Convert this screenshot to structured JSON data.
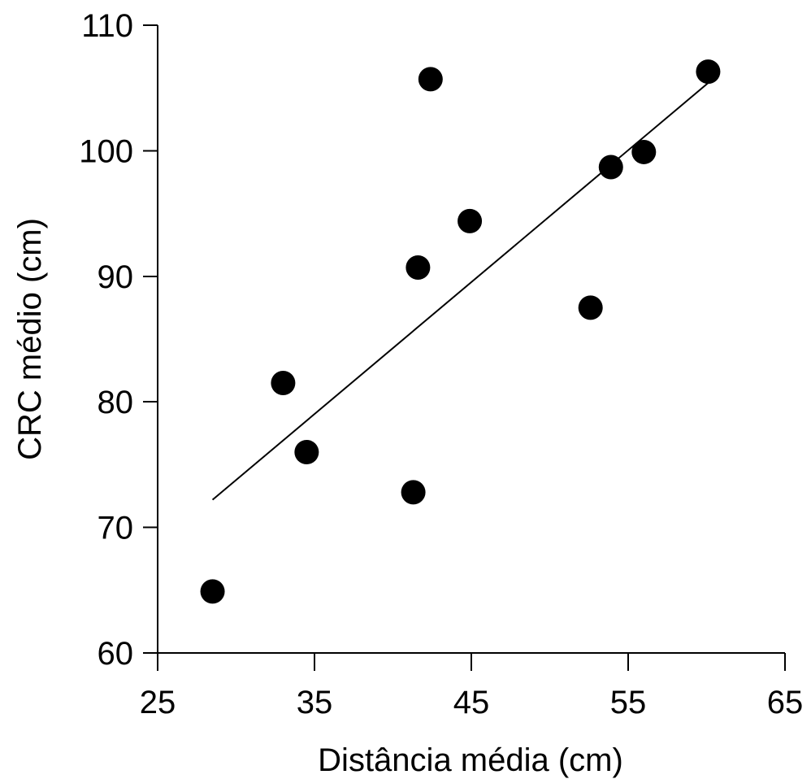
{
  "chart_data": {
    "type": "scatter",
    "xlabel": "Distância média (cm)",
    "ylabel": "CRC médio (cm)",
    "xlim": [
      25,
      65
    ],
    "ylim": [
      60,
      110
    ],
    "x_ticks": [
      "25",
      "35",
      "45",
      "55",
      "65"
    ],
    "y_ticks": [
      "60",
      "70",
      "80",
      "90",
      "100",
      "110"
    ],
    "grid": false,
    "point_color": "#000000",
    "points": [
      {
        "x": 28.5,
        "y": 64.9
      },
      {
        "x": 33.0,
        "y": 81.5
      },
      {
        "x": 34.5,
        "y": 76.0
      },
      {
        "x": 41.3,
        "y": 72.8
      },
      {
        "x": 41.6,
        "y": 90.7
      },
      {
        "x": 42.4,
        "y": 105.7
      },
      {
        "x": 44.9,
        "y": 94.4
      },
      {
        "x": 52.6,
        "y": 87.5
      },
      {
        "x": 53.9,
        "y": 98.7
      },
      {
        "x": 56.0,
        "y": 99.9
      },
      {
        "x": 60.1,
        "y": 106.3
      }
    ],
    "trendline": {
      "x_start": 28.5,
      "y_start": 72.2,
      "x_end": 60.1,
      "y_end": 105.4
    }
  }
}
